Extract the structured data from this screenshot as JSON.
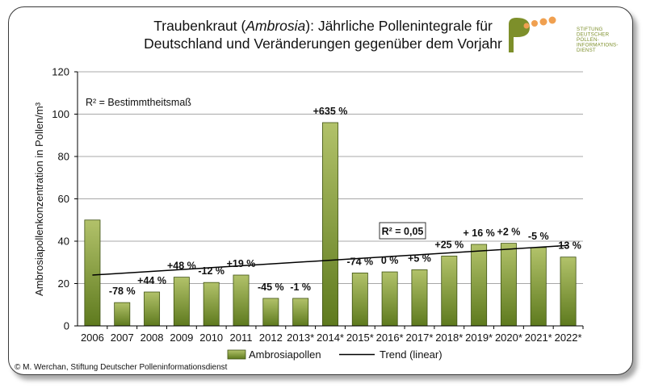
{
  "chart_data": {
    "type": "bar",
    "title_line1_prefix": "Traubenkraut (",
    "title_line1_italic": "Ambrosia",
    "title_line1_suffix": "): Jährliche Pollenintegrale für",
    "title_line2": "Deutschland und Veränderungen gegenüber dem Vorjahr",
    "ylabel": "Ambrosiapollenkonzentration in Pollen/m³",
    "ylim": [
      0,
      120
    ],
    "yticks": [
      0,
      20,
      40,
      60,
      80,
      100,
      120
    ],
    "grid": true,
    "categories": [
      "2006",
      "2007",
      "2008",
      "2009",
      "2010",
      "2011",
      "2012",
      "2013*",
      "2014*",
      "2015*",
      "2016*",
      "2017*",
      "2018*",
      "2019*",
      "2020*",
      "2021*",
      "2022*"
    ],
    "series": [
      {
        "name": "Ambrosiapollen",
        "values": [
          50,
          11,
          16,
          23,
          20.5,
          24,
          13,
          13,
          96,
          25,
          25.5,
          26.5,
          33,
          38.5,
          39,
          37,
          32.5
        ],
        "data_labels": [
          "",
          "-78 %",
          "+44 %",
          "+48 %",
          "-12 %",
          "+19 %",
          "-45 %",
          "-1 %",
          "+635 %",
          "-74 %",
          "0 %",
          "+5 %",
          "+25 %",
          "+ 16 %",
          "+2 %",
          "-5 %",
          "-13 %"
        ]
      }
    ],
    "trend": {
      "name": "Trend (linear)",
      "start": 24,
      "end": 38
    },
    "annotations": {
      "r2_definition": "R² = Bestimmtheitsmaß",
      "r2_value": "R² = 0,05"
    },
    "legend_position": "bottom"
  },
  "colors": {
    "bar_light": "#b2c26a",
    "bar_dark": "#5e7a1e",
    "bar_stroke": "#3f5213",
    "grid": "#a8a8a8",
    "logo_green": "#7d8f2a",
    "logo_orange": "#f0a050"
  },
  "logo": {
    "text_lines": [
      "STIFTUNG",
      "DEUTSCHER",
      "POLLEN-",
      "INFORMATIONS-",
      "DIENST"
    ]
  },
  "copyright": "© M. Werchan, Stiftung Deutscher Polleninformationsdienst"
}
